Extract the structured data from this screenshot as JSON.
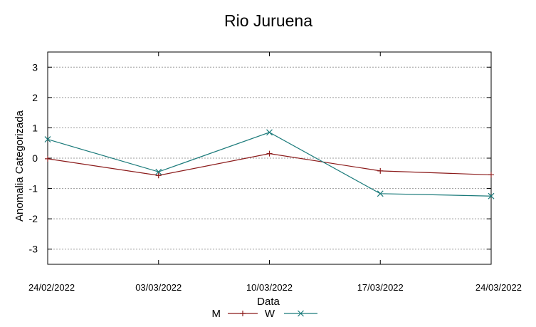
{
  "chart_data": {
    "type": "line",
    "title": "Rio Juruena",
    "xlabel": "Data",
    "ylabel": "Anomalia Categorizada",
    "x": [
      "24/02/2022",
      "03/03/2022",
      "10/03/2022",
      "17/03/2022",
      "24/03/2022"
    ],
    "yticks": [
      "3",
      "2",
      "1",
      "0",
      "-1",
      "-2",
      "-3"
    ],
    "ylim": [
      -3.5,
      3.5
    ],
    "grid": true,
    "legend_position": "bottom",
    "series": [
      {
        "name": "M",
        "values": [
          -0.02,
          -0.57,
          0.15,
          -0.42,
          -0.55
        ],
        "color": "#8b1a1a",
        "marker": "plus"
      },
      {
        "name": "W",
        "values": [
          0.62,
          -0.45,
          0.85,
          -1.17,
          -1.25
        ],
        "color": "#1a7a7a",
        "marker": "cross"
      }
    ]
  }
}
